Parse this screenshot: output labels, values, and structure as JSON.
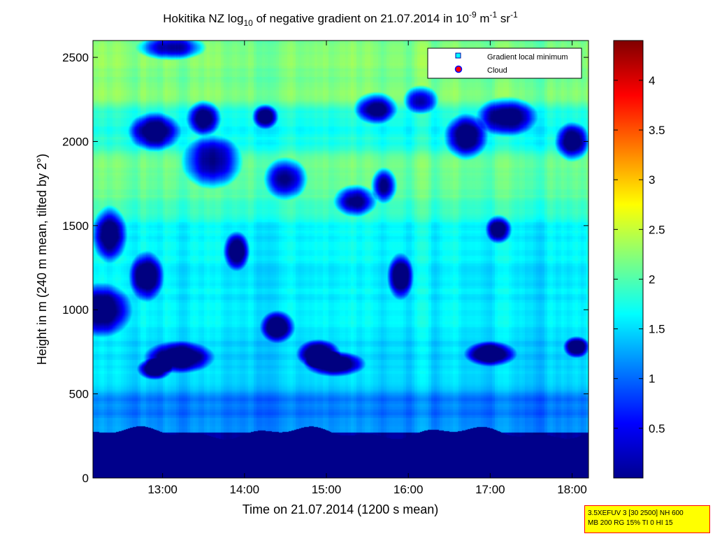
{
  "chart_data": {
    "type": "heatmap",
    "title": "Hokitika NZ log₁₀ of negative gradient on 21.07.2014 in 10⁻⁹ m⁻¹ sr⁻¹",
    "title_parts": {
      "a": "Hokitika NZ log",
      "sub": "10",
      "b": " of negative gradient on 21.07.2014 in 10",
      "sup1": "-9",
      "c": " m",
      "sup2": "-1",
      "d": " sr",
      "sup3": "-1"
    },
    "xlabel": "Time on 21.07.2014 (1200 s mean)",
    "ylabel": "Height in m (240 m mean, tilted by 2°)",
    "x_ticks": [
      "13:00",
      "14:00",
      "15:00",
      "16:00",
      "17:00",
      "18:00"
    ],
    "x_tick_hours": [
      13,
      14,
      15,
      16,
      17,
      18
    ],
    "x_range_hours": [
      12.15,
      18.2
    ],
    "y_ticks": [
      "0",
      "500",
      "1000",
      "1500",
      "2000",
      "2500"
    ],
    "y_tick_values": [
      0,
      500,
      1000,
      1500,
      2000,
      2500
    ],
    "ylim": [
      0,
      2600
    ],
    "colorbar": {
      "ticks": [
        "0.5",
        "1",
        "1.5",
        "2",
        "2.5",
        "3",
        "3.5",
        "4"
      ],
      "tick_values": [
        0.5,
        1,
        1.5,
        2,
        2.5,
        3,
        3.5,
        4
      ],
      "range": [
        0,
        4.4
      ],
      "colormap": "jet"
    },
    "legend": {
      "placement": "top-right",
      "entries": [
        {
          "label": "Gradient local minimum",
          "marker": "square",
          "color": "#00ffff"
        },
        {
          "label": "Cloud",
          "marker": "circle",
          "color": "#ff0000",
          "edge": "#0000ff"
        }
      ]
    },
    "field_description": {
      "low_layer_top_m": 270,
      "bands_m": [
        {
          "from": 0,
          "to": 270,
          "level": 0.05
        },
        {
          "from": 270,
          "to": 560,
          "level": 1.1
        },
        {
          "from": 560,
          "to": 900,
          "level": 1.45
        },
        {
          "from": 900,
          "to": 1700,
          "level": 1.6
        },
        {
          "from": 1700,
          "to": 2000,
          "level": 2.05
        },
        {
          "from": 2000,
          "to": 2250,
          "level": 1.7
        },
        {
          "from": 2250,
          "to": 2600,
          "level": 2.2
        }
      ],
      "dark_patches": [
        {
          "t": 12.35,
          "h": 1450,
          "w": 0.2,
          "hh": 160
        },
        {
          "t": 12.25,
          "h": 1000,
          "w": 0.35,
          "hh": 150
        },
        {
          "t": 12.8,
          "h": 1200,
          "w": 0.2,
          "hh": 140
        },
        {
          "t": 12.9,
          "h": 2060,
          "w": 0.3,
          "hh": 110
        },
        {
          "t": 13.5,
          "h": 2140,
          "w": 0.2,
          "hh": 100
        },
        {
          "t": 13.6,
          "h": 1880,
          "w": 0.35,
          "hh": 150
        },
        {
          "t": 13.2,
          "h": 720,
          "w": 0.4,
          "hh": 90
        },
        {
          "t": 13.9,
          "h": 1350,
          "w": 0.15,
          "hh": 110
        },
        {
          "t": 14.4,
          "h": 900,
          "w": 0.2,
          "hh": 90
        },
        {
          "t": 14.5,
          "h": 1780,
          "w": 0.25,
          "hh": 120
        },
        {
          "t": 14.9,
          "h": 740,
          "w": 0.25,
          "hh": 80
        },
        {
          "t": 15.1,
          "h": 680,
          "w": 0.35,
          "hh": 70
        },
        {
          "t": 15.35,
          "h": 1650,
          "w": 0.25,
          "hh": 90
        },
        {
          "t": 15.7,
          "h": 1740,
          "w": 0.15,
          "hh": 100
        },
        {
          "t": 15.6,
          "h": 2200,
          "w": 0.25,
          "hh": 90
        },
        {
          "t": 16.15,
          "h": 2250,
          "w": 0.2,
          "hh": 80
        },
        {
          "t": 16.7,
          "h": 2030,
          "w": 0.25,
          "hh": 130
        },
        {
          "t": 17.2,
          "h": 2150,
          "w": 0.35,
          "hh": 110
        },
        {
          "t": 17.1,
          "h": 1480,
          "w": 0.15,
          "hh": 80
        },
        {
          "t": 17.0,
          "h": 740,
          "w": 0.3,
          "hh": 70
        },
        {
          "t": 18.0,
          "h": 2000,
          "w": 0.2,
          "hh": 110
        },
        {
          "t": 18.05,
          "h": 780,
          "w": 0.15,
          "hh": 60
        },
        {
          "t": 14.25,
          "h": 2150,
          "w": 0.15,
          "hh": 70
        },
        {
          "t": 13.1,
          "h": 2560,
          "w": 0.4,
          "hh": 70
        },
        {
          "t": 15.9,
          "h": 1200,
          "w": 0.15,
          "hh": 130
        },
        {
          "t": 12.9,
          "h": 650,
          "w": 0.2,
          "hh": 60
        }
      ]
    }
  },
  "info_box": {
    "line1": "3.5XEFUV 3 [30 2500] NH 600",
    "line2": "MB 200 RG 15% TI 0 HI 15"
  }
}
